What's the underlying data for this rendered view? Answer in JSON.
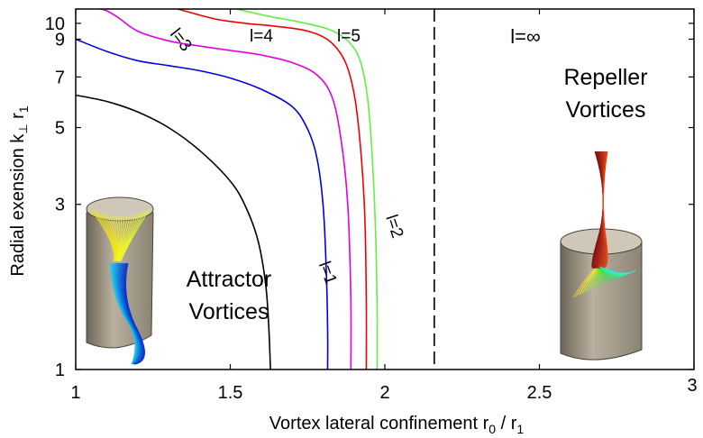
{
  "chart_data": {
    "type": "line",
    "title": "",
    "xlabel": "Vortex lateral confinement r₀ / r₁",
    "ylabel": "Radial exension k⊥ r₁",
    "xlim": [
      1,
      3
    ],
    "ylim": [
      1,
      11
    ],
    "yscale": "log",
    "xticks": [
      1,
      1.5,
      2,
      2.5,
      3
    ],
    "xtick_labels": [
      "1",
      "1.5",
      "2",
      "2.5",
      "3"
    ],
    "yticks": [
      1,
      3,
      5,
      7,
      9,
      10
    ],
    "ytick_labels": [
      "1",
      "3",
      "5",
      "7",
      "9",
      "10"
    ],
    "grid": false,
    "series": [
      {
        "name": "l=1",
        "color": "#000000",
        "points": [
          [
            1.0,
            6.2
          ],
          [
            1.1,
            5.95
          ],
          [
            1.2,
            5.55
          ],
          [
            1.3,
            5.0
          ],
          [
            1.4,
            4.3
          ],
          [
            1.5,
            3.5
          ],
          [
            1.55,
            2.95
          ],
          [
            1.59,
            2.35
          ],
          [
            1.615,
            1.75
          ],
          [
            1.625,
            1.3
          ],
          [
            1.63,
            1.0
          ]
        ]
      },
      {
        "name": "l=2",
        "color": "#0000dd",
        "points": [
          [
            1.0,
            9.0
          ],
          [
            1.1,
            8.3
          ],
          [
            1.2,
            7.8
          ],
          [
            1.3,
            7.55
          ],
          [
            1.4,
            7.3
          ],
          [
            1.5,
            6.95
          ],
          [
            1.6,
            6.45
          ],
          [
            1.7,
            5.75
          ],
          [
            1.75,
            4.95
          ],
          [
            1.78,
            4.1
          ],
          [
            1.8,
            3.0
          ],
          [
            1.81,
            2.0
          ],
          [
            1.815,
            1.3
          ],
          [
            1.815,
            1.0
          ]
        ]
      },
      {
        "name": "l=3",
        "color": "#e000e0",
        "points": [
          [
            1.0,
            11.0
          ],
          [
            1.08,
            11.0
          ],
          [
            1.13,
            10.5
          ],
          [
            1.2,
            9.5
          ],
          [
            1.3,
            8.9
          ],
          [
            1.4,
            8.6
          ],
          [
            1.5,
            8.35
          ],
          [
            1.6,
            8.1
          ],
          [
            1.7,
            7.7
          ],
          [
            1.78,
            7.1
          ],
          [
            1.83,
            6.1
          ],
          [
            1.86,
            4.5
          ],
          [
            1.88,
            3.0
          ],
          [
            1.89,
            1.6
          ],
          [
            1.89,
            1.0
          ]
        ]
      },
      {
        "name": "l=4",
        "color": "#ee0000",
        "points": [
          [
            1.33,
            11.0
          ],
          [
            1.45,
            10.3
          ],
          [
            1.55,
            10.0
          ],
          [
            1.65,
            9.8
          ],
          [
            1.75,
            9.5
          ],
          [
            1.82,
            8.9
          ],
          [
            1.87,
            7.8
          ],
          [
            1.9,
            6.3
          ],
          [
            1.92,
            4.5
          ],
          [
            1.935,
            2.8
          ],
          [
            1.94,
            1.6
          ],
          [
            1.94,
            1.0
          ]
        ]
      },
      {
        "name": "l=5",
        "color": "#66ee44",
        "points": [
          [
            1.52,
            11.0
          ],
          [
            1.62,
            10.5
          ],
          [
            1.72,
            10.1
          ],
          [
            1.82,
            9.6
          ],
          [
            1.88,
            8.9
          ],
          [
            1.92,
            7.8
          ],
          [
            1.945,
            6.0
          ],
          [
            1.96,
            4.0
          ],
          [
            1.97,
            2.5
          ],
          [
            1.975,
            1.5
          ],
          [
            1.975,
            1.0
          ]
        ]
      }
    ],
    "vline": {
      "name": "l=∞",
      "x": 2.16,
      "style": "dashed",
      "color": "#000000"
    },
    "annotations": [
      "Attractor",
      "Vortices",
      "Repeller",
      "Vortices",
      "l=1",
      "l=2",
      "l=3",
      "l=4",
      "l=5",
      "l=∞"
    ]
  },
  "labels": {
    "attractor_line1": "Attractor",
    "attractor_line2": "Vortices",
    "repeller_line1": "Repeller",
    "repeller_line2": "Vortices",
    "l1": "l=1",
    "l2": "l=2",
    "l3": "l=3",
    "l4": "l=4",
    "l5": "l=5",
    "linf": "l=∞",
    "xlabel_main": "Vortex lateral confinement r",
    "xlabel_sub0": "0",
    "xlabel_slash": " / r",
    "xlabel_sub1": "1",
    "ylabel_main": "Radial exension k",
    "ylabel_perp": "⊥",
    "ylabel_r": " r",
    "ylabel_sub1": "1"
  }
}
